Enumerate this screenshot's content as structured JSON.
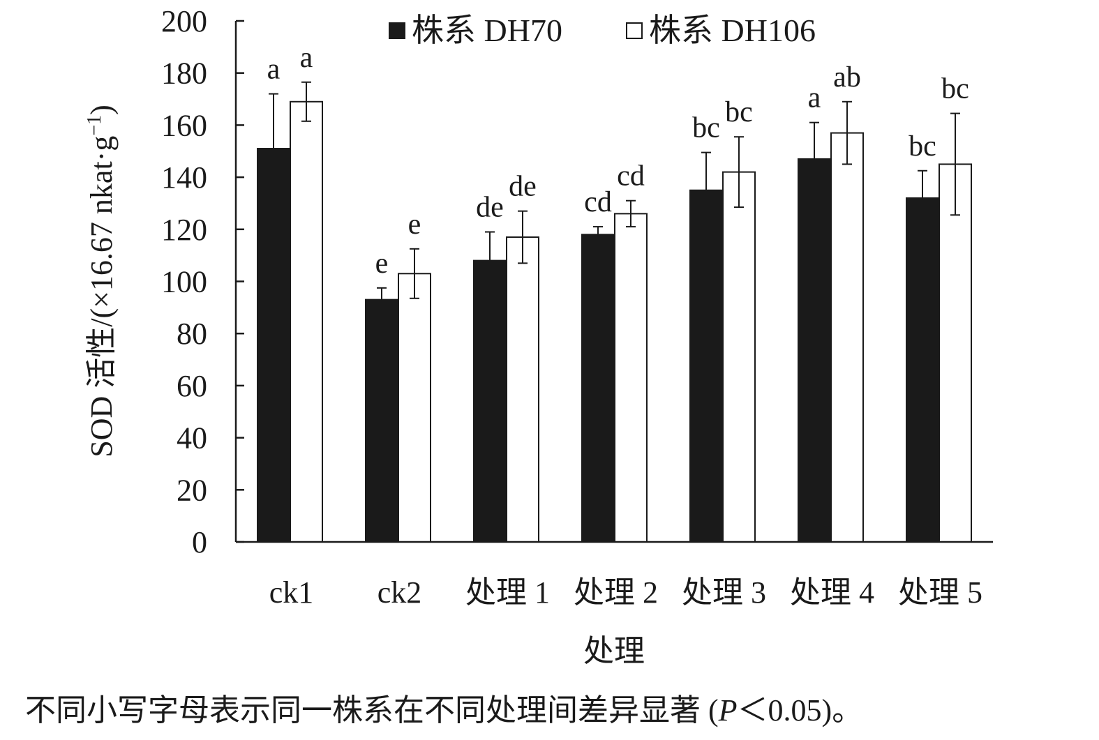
{
  "chart_data": {
    "type": "bar",
    "xlabel": "处理",
    "ylabel": "SOD 活性/(×16.67 nkat·g",
    "ylabel_superscript": "−1",
    "ylabel_close": ")",
    "ylim": [
      0,
      200
    ],
    "yticks": [
      0,
      20,
      40,
      60,
      80,
      100,
      120,
      140,
      160,
      180,
      200
    ],
    "categories": [
      "ck1",
      "ck2",
      "处理 1",
      "处理 2",
      "处理 3",
      "处理 4",
      "处理 5"
    ],
    "series": [
      {
        "name": "株系 DH70",
        "fill": "#1a1a1a",
        "values": [
          151,
          93,
          108,
          118,
          135,
          147,
          132
        ],
        "errors": [
          21,
          4.5,
          11,
          3,
          14.5,
          14,
          10.5
        ],
        "labels": [
          "a",
          "e",
          "de",
          "cd",
          "bc",
          "a",
          "bc"
        ]
      },
      {
        "name": "株系 DH106",
        "fill": "#ffffff",
        "values": [
          169,
          103,
          117,
          126,
          142,
          157,
          145
        ],
        "errors": [
          7.5,
          9.5,
          10,
          5,
          13.5,
          12,
          19.5
        ],
        "labels": [
          "a",
          "e",
          "de",
          "cd",
          "bc",
          "ab",
          "bc"
        ]
      }
    ],
    "legend_position": "top"
  },
  "footnote": {
    "before": "不同小写字母表示同一株系在不同处理间差异显著 (",
    "p": "P",
    "after": "＜0.05)。"
  }
}
